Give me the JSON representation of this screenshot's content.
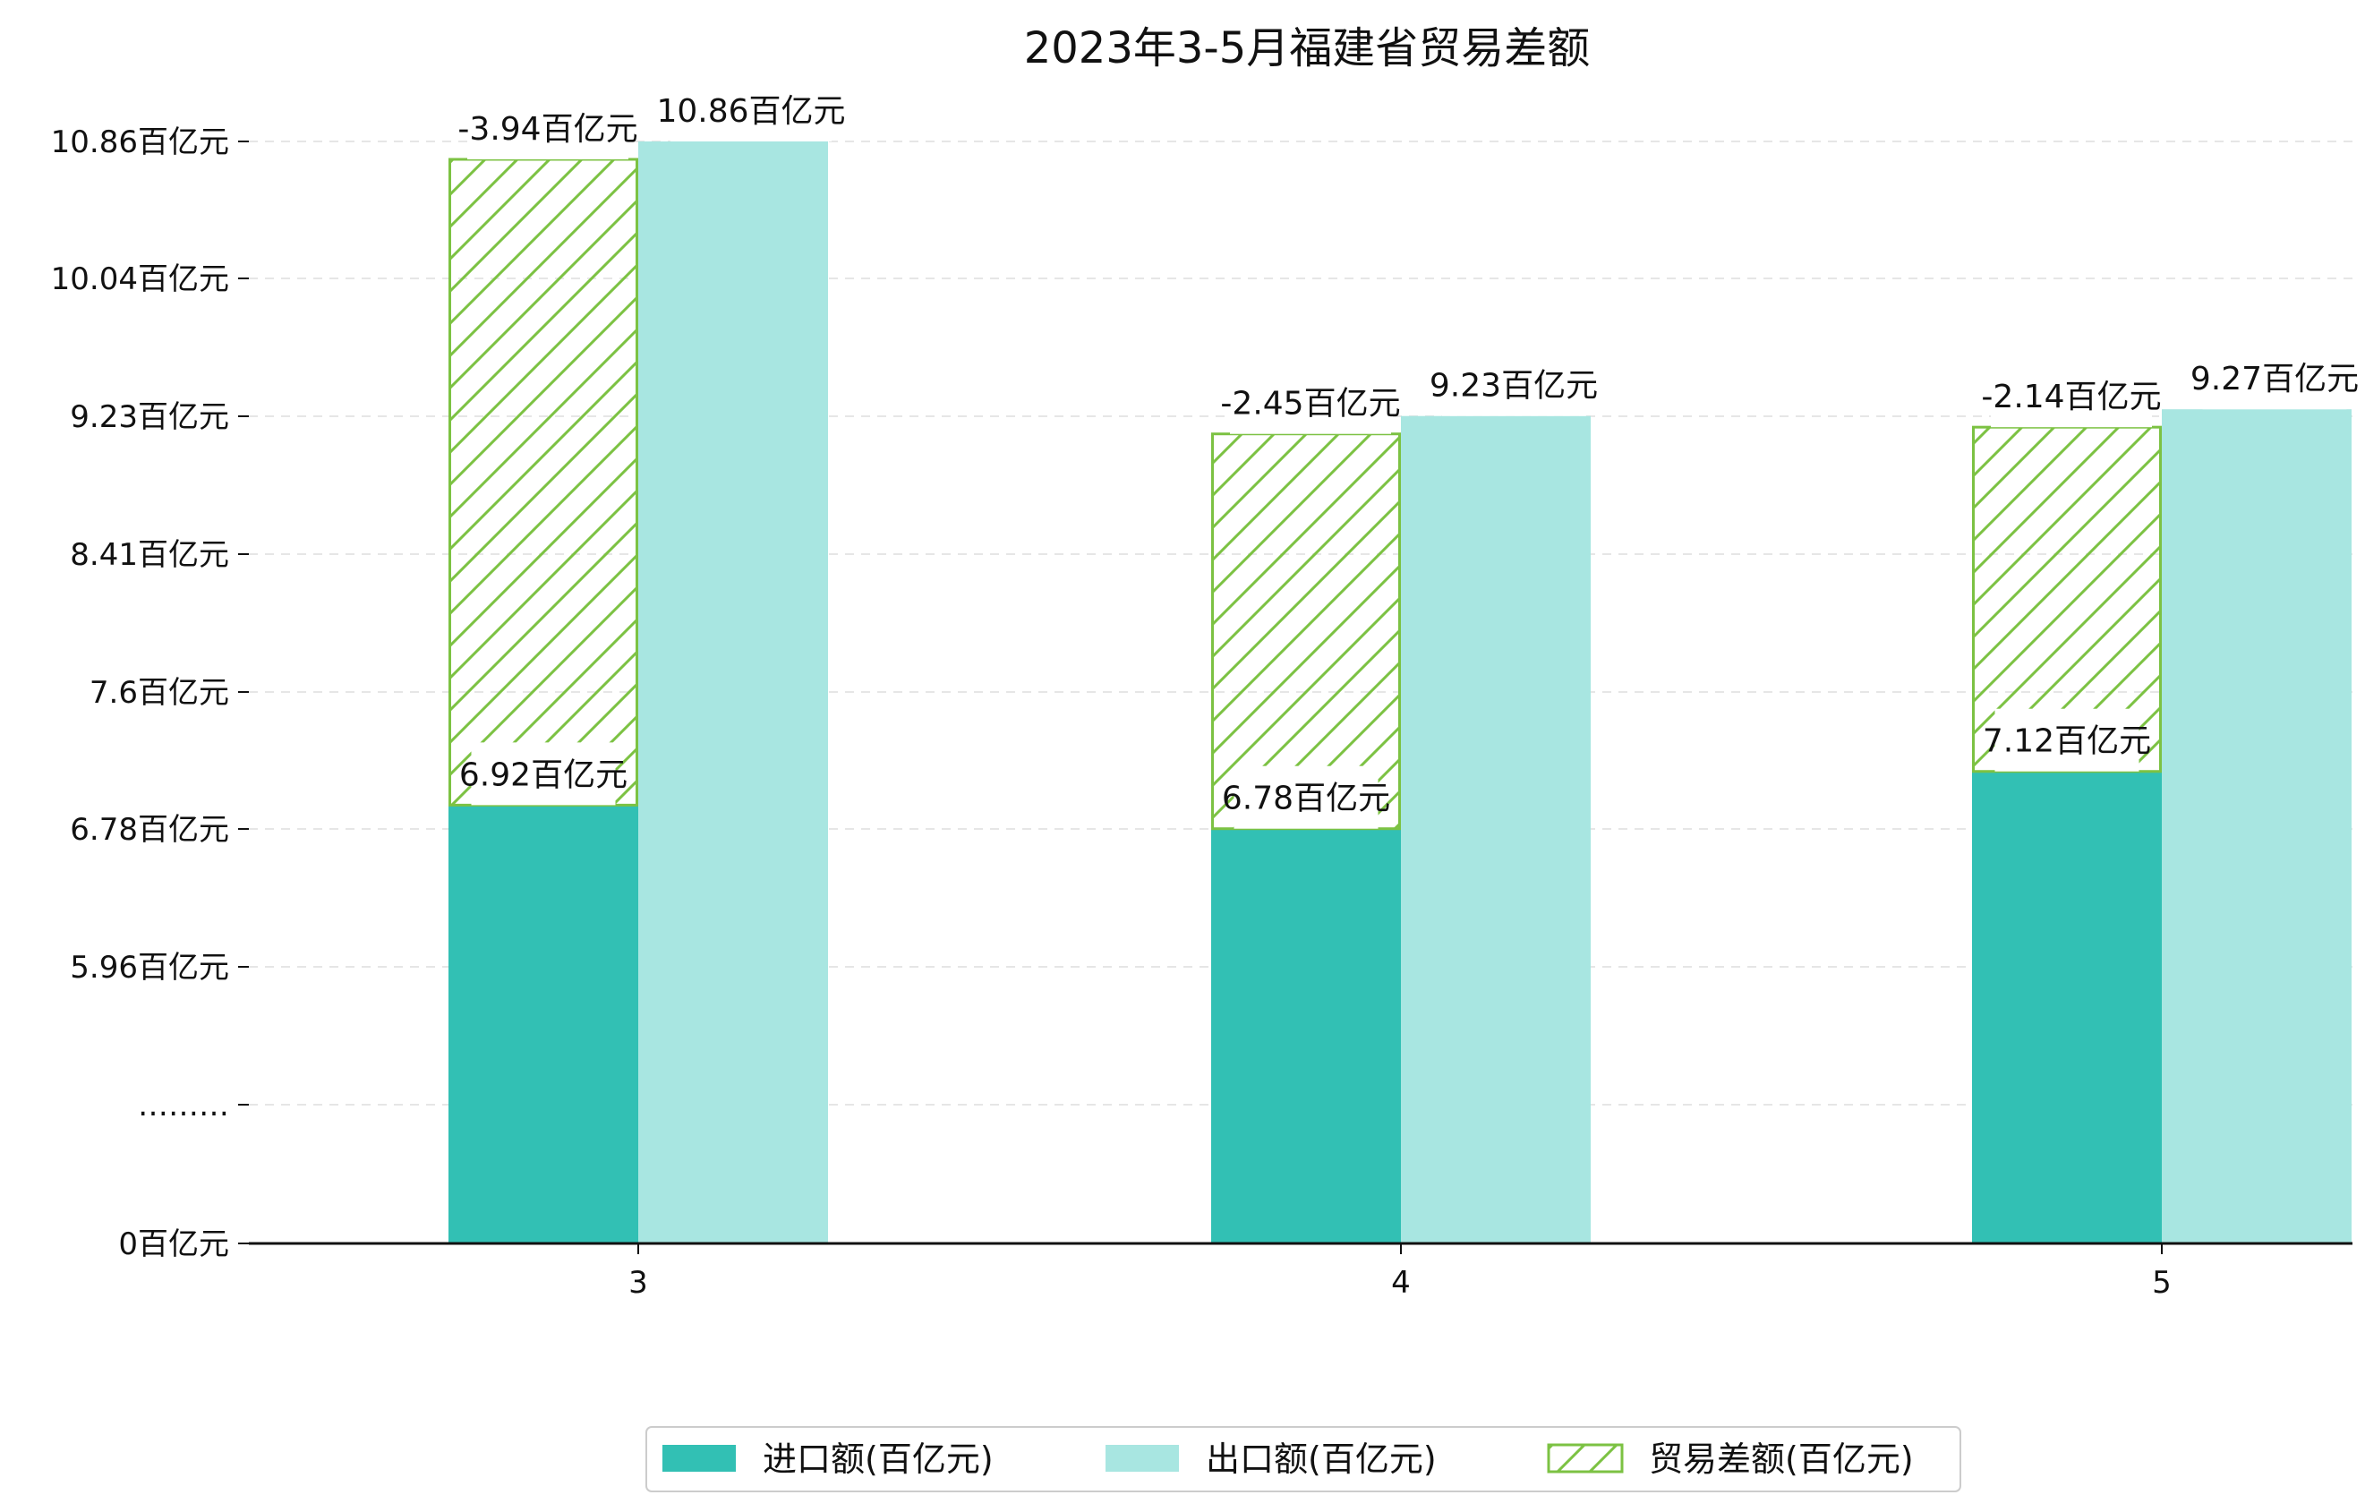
{
  "chart_data": {
    "type": "bar",
    "title": "2023年3-5月福建省贸易差额",
    "categories": [
      "3",
      "4",
      "5"
    ],
    "unit_suffix": "百亿元",
    "y_ticks": [
      {
        "value": 0,
        "label": "0百亿元"
      },
      {
        "label": "………"
      },
      {
        "value": 5.96,
        "label": "5.96百亿元"
      },
      {
        "value": 6.78,
        "label": "6.78百亿元"
      },
      {
        "value": 7.6,
        "label": "7.6百亿元"
      },
      {
        "value": 8.41,
        "label": "8.41百亿元"
      },
      {
        "value": 9.23,
        "label": "9.23百亿元"
      },
      {
        "value": 10.04,
        "label": "10.04百亿元"
      },
      {
        "value": 10.86,
        "label": "10.86百亿元"
      }
    ],
    "axis_break": "between 0 and 5.96",
    "grid": "horizontal dashed",
    "legend_position": "bottom-center",
    "series": [
      {
        "name": "进口额(百亿元)",
        "values": [
          6.92,
          6.78,
          7.12
        ],
        "labels": [
          "6.92百亿元",
          "6.78百亿元",
          "7.12百亿元"
        ],
        "color": "#32c0b4"
      },
      {
        "name": "出口额(百亿元)",
        "values": [
          10.86,
          9.23,
          9.27
        ],
        "labels": [
          "10.86百亿元",
          "9.23百亿元",
          "9.27百亿元"
        ],
        "color": "#a8e6e1"
      },
      {
        "name": "贸易差额(百亿元)",
        "values": [
          -3.94,
          -2.45,
          -2.14
        ],
        "labels": [
          "-3.94百亿元",
          "-2.45百亿元",
          "-2.14百亿元"
        ],
        "color": "#7cc243",
        "pattern": "hatch"
      }
    ]
  }
}
